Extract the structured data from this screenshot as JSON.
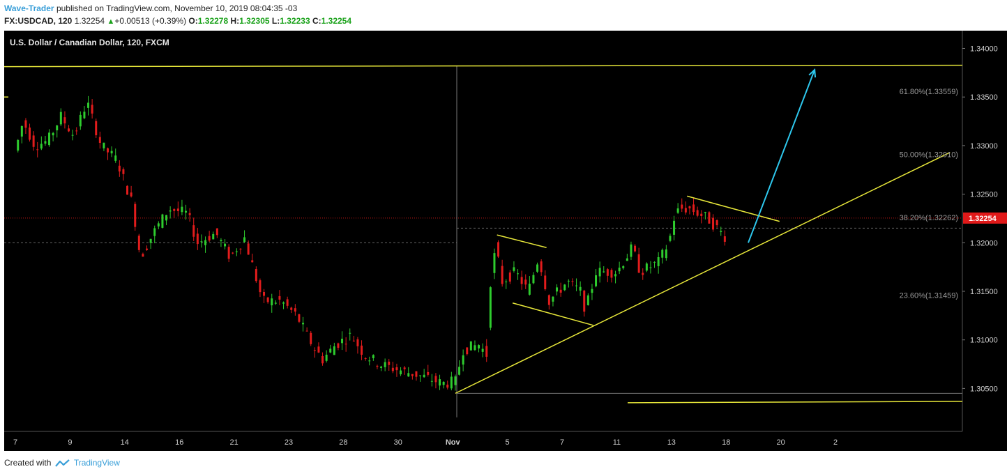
{
  "header": {
    "author": "Wave-Trader",
    "published_text": "published on TradingView.com, November 10, 2019 08:04:35 -03",
    "symbol": "FX:USDCAD, 120",
    "last": "1.32254",
    "change": "+0.00513 (+0.39%)",
    "o_label": "O:",
    "o_value": "1.32278",
    "h_label": "H:",
    "h_value": "1.32305",
    "l_label": "L:",
    "l_value": "1.32233",
    "c_label": "C:",
    "c_value": "1.32254"
  },
  "footer": {
    "created_with": "Created with",
    "brand": "TradingView"
  },
  "colors": {
    "background": "#000000",
    "bull": "#2ecc2e",
    "bear": "#e21c1c",
    "trendline": "#e8e83a",
    "arrow": "#2ec8ee",
    "price_label_bg": "#e01919"
  },
  "chart_data": {
    "type": "candlestick",
    "title": "U.S. Dollar / Canadian Dollar, 120, FXCM",
    "y_ticks": [
      "1.34000",
      "1.33500",
      "1.33000",
      "1.32500",
      "1.32000",
      "1.31500",
      "1.31000",
      "1.30500"
    ],
    "y_tick_values": [
      1.34,
      1.335,
      1.33,
      1.325,
      1.32,
      1.315,
      1.31,
      1.305
    ],
    "ylim": [
      1.3035,
      1.346
    ],
    "x_ticks": [
      "7",
      "9",
      "14",
      "16",
      "21",
      "23",
      "28",
      "30",
      "Nov",
      "5",
      "7",
      "11",
      "13",
      "18",
      "20",
      "2"
    ],
    "x_tick_index": [
      0,
      42,
      84,
      126,
      168,
      210,
      252,
      294,
      336,
      378,
      420,
      462,
      504,
      546,
      588,
      630
    ],
    "last_price": 1.32254,
    "last_price_label": "1.32254",
    "fib_levels": [
      {
        "label": "61.80%(1.33559)",
        "value": 1.33559
      },
      {
        "label": "50.00%(1.32910)",
        "value": 1.3291
      },
      {
        "label": "38.20%(1.32262)",
        "value": 1.32262
      },
      {
        "label": "23.60%(1.31459)",
        "value": 1.31459
      }
    ],
    "anchors": [
      [
        0,
        1.3295
      ],
      [
        6,
        1.3325
      ],
      [
        15,
        1.33
      ],
      [
        25,
        1.3305
      ],
      [
        35,
        1.333
      ],
      [
        45,
        1.331
      ],
      [
        55,
        1.3345
      ],
      [
        66,
        1.33
      ],
      [
        78,
        1.3285
      ],
      [
        90,
        1.324
      ],
      [
        96,
        1.3185
      ],
      [
        106,
        1.321
      ],
      [
        118,
        1.3235
      ],
      [
        132,
        1.323
      ],
      [
        140,
        1.32
      ],
      [
        154,
        1.321
      ],
      [
        165,
        1.3185
      ],
      [
        176,
        1.3205
      ],
      [
        190,
        1.314
      ],
      [
        204,
        1.314
      ],
      [
        216,
        1.3125
      ],
      [
        228,
        1.3095
      ],
      [
        236,
        1.308
      ],
      [
        246,
        1.3095
      ],
      [
        258,
        1.3105
      ],
      [
        268,
        1.3085
      ],
      [
        280,
        1.3075
      ],
      [
        292,
        1.307
      ],
      [
        306,
        1.3065
      ],
      [
        318,
        1.306
      ],
      [
        328,
        1.3055
      ],
      [
        338,
        1.3057
      ],
      [
        344,
        1.309
      ],
      [
        356,
        1.3095
      ],
      [
        362,
        1.3085
      ],
      [
        365,
        1.316
      ],
      [
        369,
        1.3195
      ],
      [
        374,
        1.316
      ],
      [
        384,
        1.317
      ],
      [
        394,
        1.315
      ],
      [
        402,
        1.3185
      ],
      [
        410,
        1.314
      ],
      [
        424,
        1.316
      ],
      [
        434,
        1.315
      ],
      [
        438,
        1.313
      ],
      [
        446,
        1.317
      ],
      [
        462,
        1.317
      ],
      [
        474,
        1.3195
      ],
      [
        480,
        1.317
      ],
      [
        494,
        1.318
      ],
      [
        502,
        1.32
      ],
      [
        506,
        1.3225
      ],
      [
        510,
        1.3235
      ],
      [
        518,
        1.3235
      ],
      [
        532,
        1.3225
      ],
      [
        546,
        1.3205
      ]
    ]
  },
  "drawings": {
    "horizontal_top": 1.3382,
    "horizontal_bottom": 1.3036,
    "left_dashed": 1.32,
    "right_dashed": 1.3215
  }
}
